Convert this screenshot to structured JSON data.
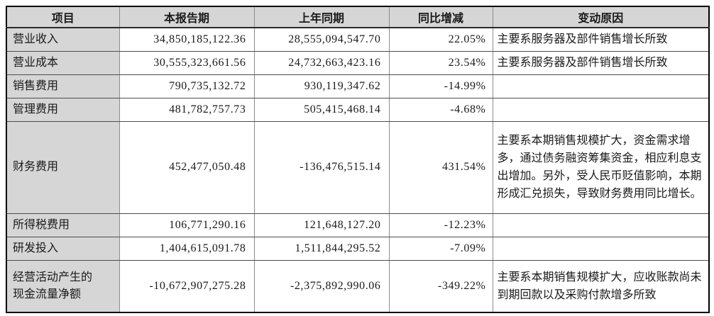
{
  "table": {
    "columns": [
      {
        "key": "item",
        "label": "项目"
      },
      {
        "key": "current",
        "label": "本报告期"
      },
      {
        "key": "prior",
        "label": "上年同期"
      },
      {
        "key": "yoy",
        "label": "同比增减"
      },
      {
        "key": "reason",
        "label": "变动原因"
      }
    ],
    "rows": [
      {
        "item": "营业收入",
        "current": "34,850,185,122.36",
        "prior": "28,555,094,547.70",
        "yoy": "22.05%",
        "reason": "主要系服务器及部件销售增长所致"
      },
      {
        "item": "营业成本",
        "current": "30,555,323,661.56",
        "prior": "24,732,663,423.16",
        "yoy": "23.54%",
        "reason": "主要系服务器及部件销售增长所致"
      },
      {
        "item": "销售费用",
        "current": "790,735,132.72",
        "prior": "930,119,347.62",
        "yoy": "-14.99%",
        "reason": ""
      },
      {
        "item": "管理费用",
        "current": "481,782,757.73",
        "prior": "505,415,468.14",
        "yoy": "-4.68%",
        "reason": ""
      },
      {
        "item": "财务费用",
        "current": "452,477,050.48",
        "prior": "-136,476,515.14",
        "yoy": "431.54%",
        "reason": "主要系本期销售规模扩大，资金需求增多，通过债务融资筹集资金，相应利息支出增加。另外，受人民币贬值影响，本期形成汇兑损失，导致财务费用同比增长。"
      },
      {
        "item": "所得税费用",
        "current": "106,771,290.16",
        "prior": "121,648,127.20",
        "yoy": "-12.23%",
        "reason": ""
      },
      {
        "item": "研发投入",
        "current": "1,404,615,091.78",
        "prior": "1,511,844,295.52",
        "yoy": "-7.09%",
        "reason": ""
      },
      {
        "item": "经营活动产生的现金流量净额",
        "current": "-10,672,907,275.28",
        "prior": "-2,375,892,990.06",
        "yoy": "-349.22%",
        "reason": "主要系本期销售规模扩大，应收账款尚未到期回款以及采购付款增多所致"
      }
    ]
  },
  "colors": {
    "header_bg": "#d6d6d6",
    "item_col_bg": "#d6d6d6",
    "border_outer": "#000000",
    "border_inner": "#8c8c8c",
    "text": "#1a1a1a"
  }
}
